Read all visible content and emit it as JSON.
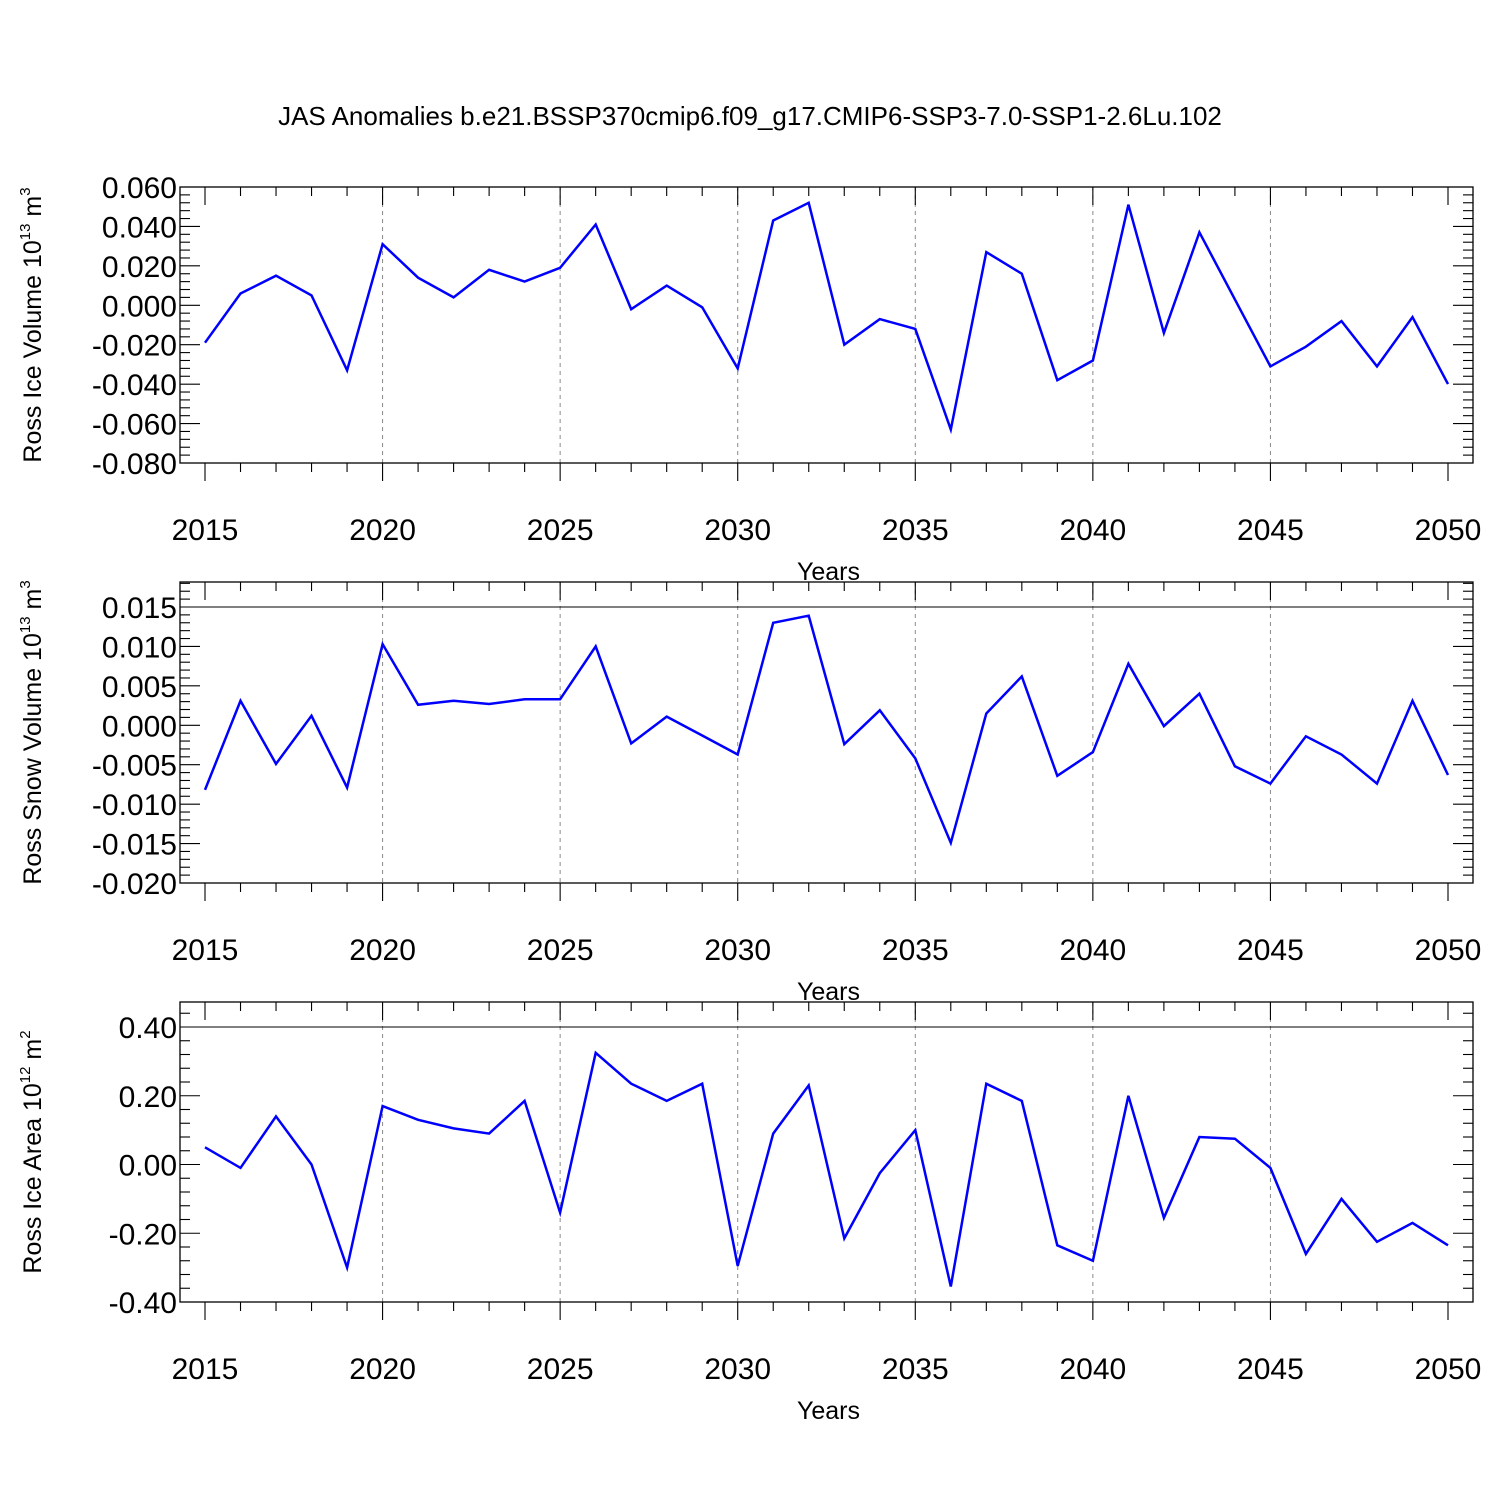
{
  "figure": {
    "title": "JAS Anomalies b.e21.BSSP370cmip6.f09_g17.CMIP6-SSP3-7.0-SSP1-2.6Lu.102",
    "line_color": "#0000ff",
    "grid_color": "#8a8a8a"
  },
  "chart_data": [
    {
      "type": "line",
      "title": "",
      "xlabel": "Years",
      "ylabel": "Ross Ice Volume 10",
      "ylabel_exp": "13",
      "ylabel_unit": " m",
      "ylabel_unit_exp": "3",
      "xlim": [
        2015,
        2050
      ],
      "ylim": [
        -0.08,
        0.06
      ],
      "xticks": [
        2015,
        2020,
        2025,
        2030,
        2035,
        2040,
        2045,
        2050
      ],
      "xtick_labels": [
        "2015",
        "2020",
        "2025",
        "2030",
        "2035",
        "2040",
        "2045",
        "2050"
      ],
      "yticks": [
        0.06,
        0.04,
        0.02,
        0.0,
        -0.02,
        -0.04,
        -0.06,
        -0.08
      ],
      "ytick_labels": [
        "0.060",
        "0.040",
        "0.020",
        "0.000",
        "-0.020",
        "-0.040",
        "-0.060",
        "-0.080"
      ],
      "grid": "vertical dashed at labeled years",
      "x": [
        2015,
        2016,
        2017,
        2018,
        2019,
        2020,
        2021,
        2022,
        2023,
        2024,
        2025,
        2026,
        2027,
        2028,
        2029,
        2030,
        2031,
        2032,
        2033,
        2034,
        2035,
        2036,
        2037,
        2038,
        2039,
        2040,
        2041,
        2042,
        2043,
        2044,
        2045,
        2046,
        2047,
        2048,
        2049,
        2050
      ],
      "y": [
        -0.019,
        0.006,
        0.015,
        0.005,
        -0.033,
        0.031,
        0.014,
        0.004,
        0.018,
        0.012,
        0.019,
        0.041,
        -0.002,
        0.01,
        -0.001,
        -0.032,
        0.043,
        0.052,
        -0.02,
        -0.007,
        -0.012,
        -0.063,
        0.027,
        0.016,
        -0.038,
        -0.028,
        0.051,
        -0.014,
        0.037,
        0.003,
        -0.031,
        -0.021,
        -0.008,
        -0.031,
        -0.006,
        -0.04
      ]
    },
    {
      "type": "line",
      "title": "",
      "xlabel": "Years",
      "ylabel": "Ross Snow Volume 10",
      "ylabel_exp": "13",
      "ylabel_unit": " m",
      "ylabel_unit_exp": "3",
      "xlim": [
        2015,
        2050
      ],
      "ylim": [
        -0.02,
        0.015
      ],
      "xticks": [
        2015,
        2020,
        2025,
        2030,
        2035,
        2040,
        2045,
        2050
      ],
      "xtick_labels": [
        "2015",
        "2020",
        "2025",
        "2030",
        "2035",
        "2040",
        "2045",
        "2050"
      ],
      "yticks": [
        0.015,
        0.01,
        0.005,
        0.0,
        -0.005,
        -0.01,
        -0.015,
        -0.02
      ],
      "ytick_labels": [
        "0.015",
        "0.010",
        "0.005",
        "0.000",
        "-0.005",
        "-0.010",
        "-0.015",
        "-0.020"
      ],
      "grid": "vertical dashed at labeled years",
      "x": [
        2015,
        2016,
        2017,
        2018,
        2019,
        2020,
        2021,
        2022,
        2023,
        2024,
        2025,
        2026,
        2027,
        2028,
        2029,
        2030,
        2031,
        2032,
        2033,
        2034,
        2035,
        2036,
        2037,
        2038,
        2039,
        2040,
        2041,
        2042,
        2043,
        2044,
        2045,
        2046,
        2047,
        2048,
        2049,
        2050
      ],
      "y": [
        -0.0082,
        0.0031,
        -0.0049,
        0.0012,
        -0.0079,
        0.0103,
        0.0026,
        0.0031,
        0.0027,
        0.0033,
        0.0033,
        0.01,
        -0.0023,
        0.0011,
        -0.0013,
        -0.0037,
        0.013,
        0.0139,
        -0.0024,
        0.0019,
        -0.0042,
        -0.0149,
        0.0015,
        0.0062,
        -0.0064,
        -0.0034,
        0.0078,
        -0.0001,
        0.004,
        -0.0052,
        -0.0074,
        -0.0014,
        -0.0037,
        -0.0074,
        0.0031,
        -0.0063
      ]
    },
    {
      "type": "line",
      "title": "",
      "xlabel": "Years",
      "ylabel": "Ross Ice Area 10",
      "ylabel_exp": "12",
      "ylabel_unit": " m",
      "ylabel_unit_exp": "2",
      "xlim": [
        2015,
        2050
      ],
      "ylim": [
        -0.4,
        0.4
      ],
      "xticks": [
        2015,
        2020,
        2025,
        2030,
        2035,
        2040,
        2045,
        2050
      ],
      "xtick_labels": [
        "2015",
        "2020",
        "2025",
        "2030",
        "2035",
        "2040",
        "2045",
        "2050"
      ],
      "yticks": [
        0.4,
        0.2,
        0.0,
        -0.2,
        -0.4
      ],
      "ytick_labels": [
        "0.40",
        "0.20",
        "0.00",
        "-0.20",
        "-0.40"
      ],
      "grid": "vertical dashed at labeled years",
      "x": [
        2015,
        2016,
        2017,
        2018,
        2019,
        2020,
        2021,
        2022,
        2023,
        2024,
        2025,
        2026,
        2027,
        2028,
        2029,
        2030,
        2031,
        2032,
        2033,
        2034,
        2035,
        2036,
        2037,
        2038,
        2039,
        2040,
        2041,
        2042,
        2043,
        2044,
        2045,
        2046,
        2047,
        2048,
        2049,
        2050
      ],
      "y": [
        0.05,
        -0.01,
        0.14,
        0.0,
        -0.3,
        0.17,
        0.13,
        0.105,
        0.09,
        0.185,
        -0.14,
        0.325,
        0.235,
        0.185,
        0.235,
        -0.295,
        0.09,
        0.23,
        -0.215,
        -0.025,
        0.1,
        -0.355,
        0.235,
        0.185,
        -0.235,
        -0.28,
        0.2,
        -0.155,
        0.08,
        0.075,
        -0.01,
        -0.26,
        -0.1,
        -0.225,
        -0.17,
        -0.235
      ]
    }
  ]
}
